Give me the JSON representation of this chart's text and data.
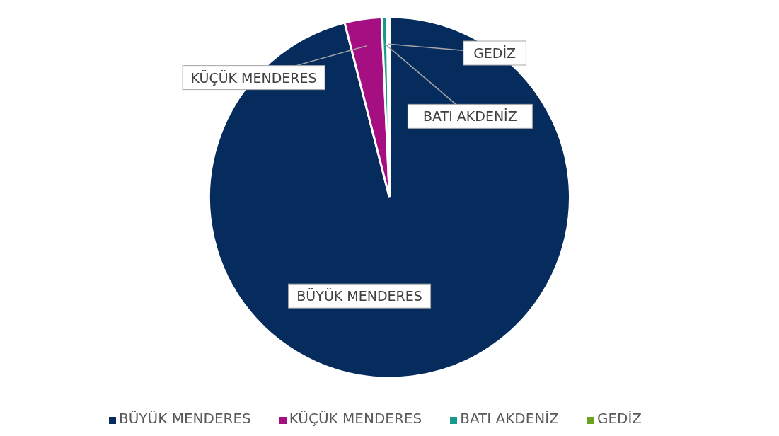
{
  "chart_data": {
    "type": "pie",
    "categories": [
      "BÜYÜK MENDERES",
      "KÜÇÜK MENDERES",
      "BATI AKDENİZ",
      "GEDİZ"
    ],
    "values": [
      96,
      3.3,
      0.5,
      0.2
    ],
    "colors": [
      "#062c5e",
      "#a50f82",
      "#179a8c",
      "#6aa121"
    ],
    "legend": "bottom"
  }
}
